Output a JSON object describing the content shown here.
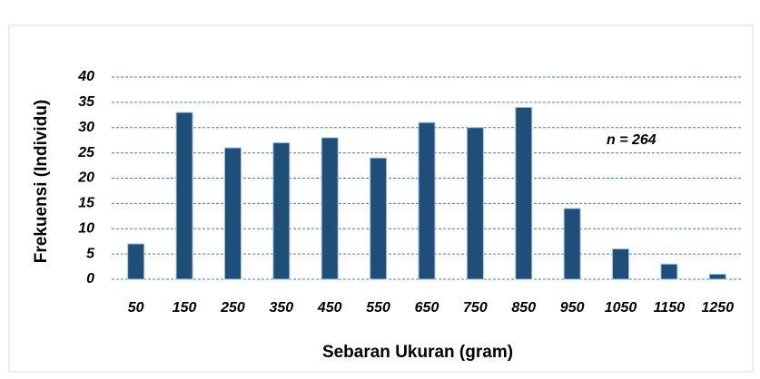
{
  "chart_data": {
    "type": "bar",
    "categories": [
      "50",
      "150",
      "250",
      "350",
      "450",
      "550",
      "650",
      "750",
      "850",
      "950",
      "1050",
      "1150",
      "1250"
    ],
    "values": [
      7,
      33,
      26,
      27,
      28,
      24,
      31,
      30,
      34,
      14,
      6,
      3,
      1
    ],
    "color": "#1f4e79",
    "ylim": [
      0,
      40
    ],
    "yticks": [
      0,
      5,
      10,
      15,
      20,
      25,
      30,
      35,
      40
    ],
    "grid": true,
    "x_label": "Sebaran Ukuran (gram)",
    "y_label": "Frekuensi (Individu)",
    "annotation": "n = 264"
  }
}
